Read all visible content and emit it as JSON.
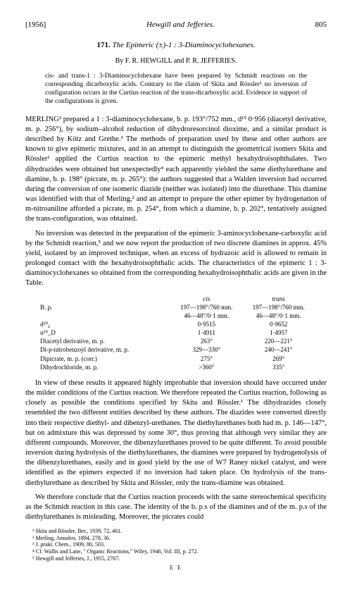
{
  "header": {
    "year": "[1956]",
    "running": "Hewgill and Jefferies.",
    "page": "805"
  },
  "title": {
    "number": "171.",
    "text": "The Epimeric (±)-1 : 3-Diaminocyclohexanes."
  },
  "authors": "By F. R. HEWGILL and P. R. JEFFERIES.",
  "abstract": "cis- and trans-1 : 3-Diaminocyclohexane have been prepared by Schmidt reactions on the corresponding dicarboxylic acids. Contrary to the claim of Skita and Rössler¹ no inversion of configuration occurs in the Curtius reaction of the trans-dicarboxylic acid. Evidence in support of the configurations is given.",
  "para1": "MERLING² prepared a 1 : 3-diaminocyclohexane, b. p. 193°/752 mm., d¹⁵ 0·956 (diacetyl derivative, m. p. 256°), by sodium–alcohol reduction of dihydroresorcinol dioxime, and a similar product is described by Kötz and Grethe.³ The methods of preparation used by these and other authors are known to give epimeric mixtures, and in an attempt to distinguish the geometrical isomers Skita and Rössler¹ applied the Curtius reaction to the epimeric methyl hexahydroisophthalates. Two dihydrazides were obtained but unexpectedly⁴ each apparently yielded the same diethylurethane and diamine, b. p. 198° (picrate, m. p. 265°): the authors suggested that a Walden inversion had occurred during the conversion of one isomeric diazide (neither was isolated) into the diurethane. This diamine was identified with that of Merling,² and an attempt to prepare the other epimer by hydrogenation of m-nitroaniline afforded a picrate, m. p. 254°, from which a diamine, b. p. 202°, tentatively assigned the trans-configuration, was obtained.",
  "para2": "No inversion was detected in the preparation of the epimeric 3-aminocyclohexane-carboxylic acid by the Schmidt reaction,⁵ and we now report the production of two discrete diamines in approx. 45% yield, isolated by an improved technique, when an excess of hydrazoic acid is allowed to remain in prolonged contact with the hexahydroisophthalic acids. The characteristics of the epimeric 1 : 3-diaminocyclohexanes so obtained from the corresponding hexahydroisophthalic acids are given in the Table.",
  "table": {
    "head_cis": "cis",
    "head_trans": "trans",
    "rows": [
      {
        "label": "B. p.",
        "cis": "197—198°/760 mm.\n46—48°/0·1 mm.",
        "trans": "197—198°/760 mm.\n46—48°/0·1 mm."
      },
      {
        "label": "d²⁰₄",
        "cis": "0·9515",
        "trans": "0·9652"
      },
      {
        "label": "n²⁰_D",
        "cis": "1·4911",
        "trans": "1·4957"
      },
      {
        "label": "Diacetyl derivative, m. p.",
        "cis": "263°",
        "trans": "220—221°"
      },
      {
        "label": "Di-p-nitrobenzoyl derivative, m. p.",
        "cis": "329—330°",
        "trans": "240—241°"
      },
      {
        "label": "Dipicrate, m. p. (corr.)",
        "cis": "275°",
        "trans": "269°"
      },
      {
        "label": "Dihydrochloride, m. p.",
        "cis": ">360°",
        "trans": "335°"
      }
    ]
  },
  "para3": "In view of these results it appeared highly improbable that inversion should have occurred under the milder conditions of the Curtius reaction. We therefore repeated the Curtius reaction, following as closely as possible the conditions specified by Skita and Rössler.¹ The dihydrazides closely resembled the two different entities described by these authors. The diazides were converted directly into their respective diethyl- and dibenzyl-urethanes. The diethylurethanes both had m. p. 146—147°, but on admixture this was depressed by some 30°, thus proving that although very similar they are different compounds. Moreover, the dibenzylurethanes proved to be quite different. To avoid possible inversion during hydrolysis of the diethylurethanes, the diamines were prepared by hydrogenolysis of the dibenzylurethanes, easily and in good yield by the use of W7 Raney nickel catalyst, and were identified as the epimers expected if no inversion had taken place. On hydrolysis of the trans-diethylurethane as described by Skita and Rössler, only the trans-diamine was obtained.",
  "para4": "We therefore conclude that the Curtius reaction proceeds with the same stereochemical specificity as the Schmidt reaction in this case. The identity of the b. p.s of the diamines and of the m. p.s of the diethylurethanes is misleading. Moreover, the picrates could",
  "footnotes": [
    "¹ Skita and Rössler, Ber., 1939, 72, 461.",
    "² Merling, Annalen, 1894, 278, 36.",
    "³ J. prakt. Chem., 1909, 80, 503.",
    "⁴ Cf. Wallis and Lane, \" Organic Reactions,\" Wiley, 1946, Vol. III, p. 272.",
    "⁵ Hewgill and Jefferies, J., 1955, 2767."
  ],
  "sig": "E E"
}
